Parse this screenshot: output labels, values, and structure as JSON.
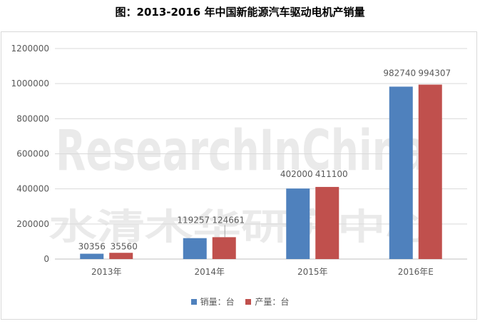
{
  "title": "图：2013-2016 年中国新能源汽车驱动电机产销量",
  "watermark": {
    "text_en": "ResearchInChina",
    "text_cn": "水清木华研究中心"
  },
  "colors": {
    "sales": "#4f81bd",
    "production": "#c0504d",
    "grid": "#d9d9d9",
    "axis_text": "#595959"
  },
  "chart_data": {
    "type": "bar",
    "title": "图：2013-2016 年中国新能源汽车驱动电机产销量",
    "categories": [
      "2013年",
      "2014年",
      "2015年",
      "2016年E"
    ],
    "series": [
      {
        "name": "销量：台",
        "values": [
          30356,
          119257,
          402000,
          982740
        ]
      },
      {
        "name": "产量：台",
        "values": [
          35560,
          124661,
          411100,
          994307
        ]
      }
    ],
    "ylim": [
      0,
      1200000
    ],
    "yticks": [
      0,
      200000,
      400000,
      600000,
      800000,
      1000000,
      1200000
    ],
    "xlabel": "",
    "ylabel": "",
    "grid": true,
    "legend": "bottom"
  },
  "legend": {
    "sales_label": "销量：台",
    "production_label": "产量：台"
  }
}
